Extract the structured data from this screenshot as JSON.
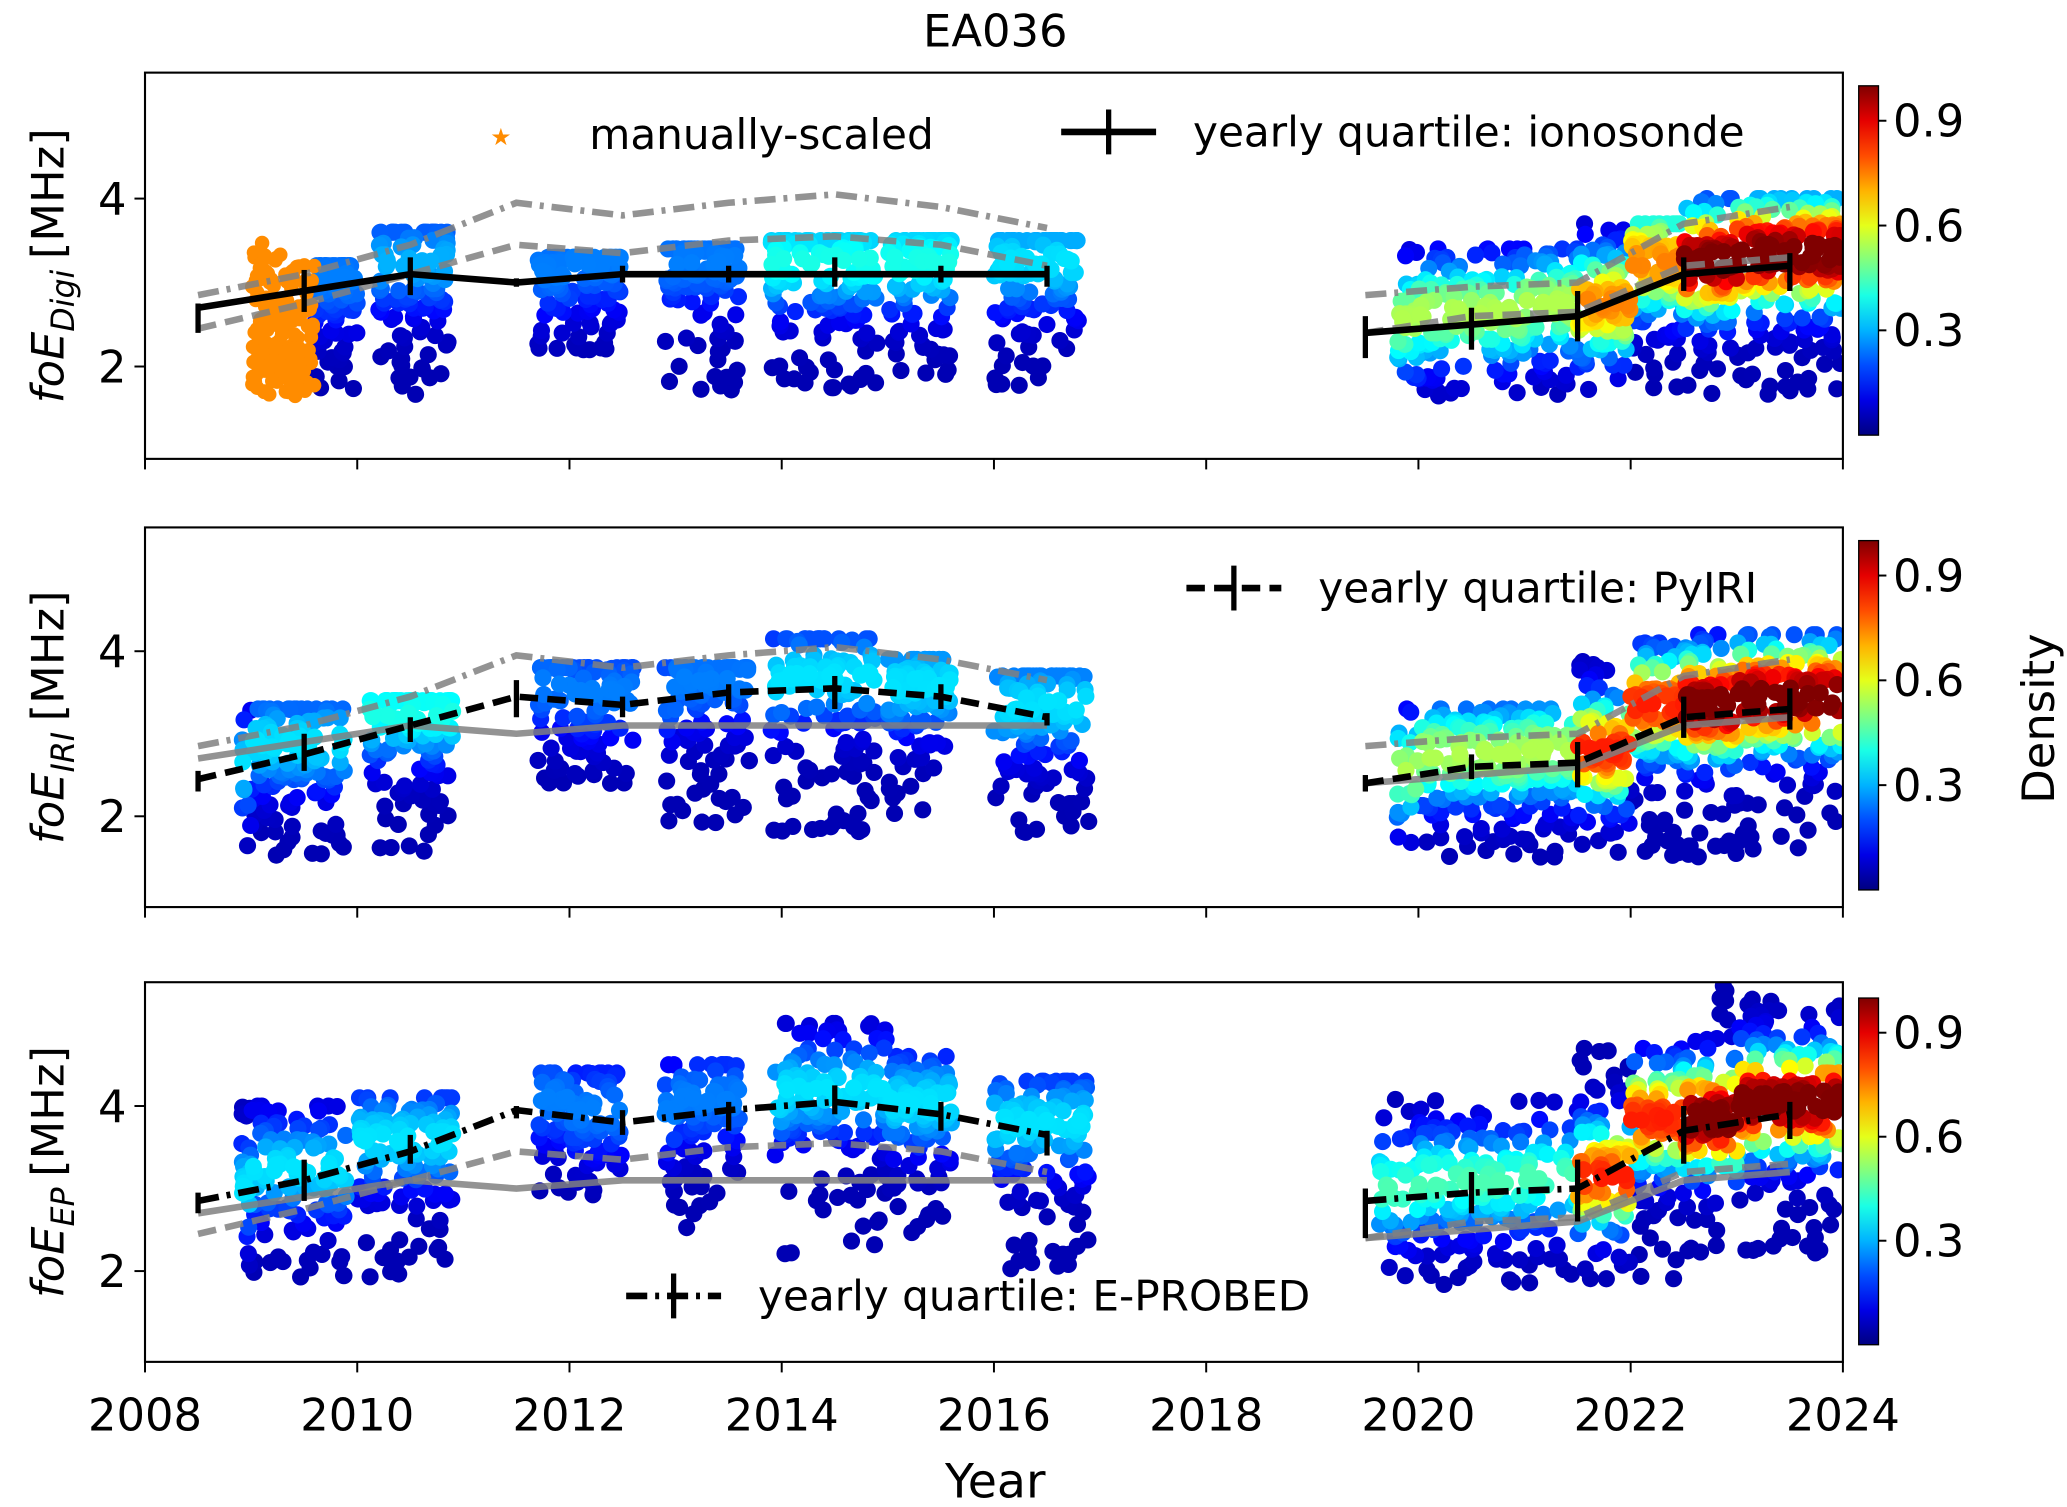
{
  "chart_data": {
    "type": "scatter",
    "title": "EA036",
    "xlabel": "Year",
    "xlim": [
      2008,
      2024
    ],
    "x_ticks": [
      "2008",
      "2010",
      "2012",
      "2014",
      "2016",
      "2018",
      "2020",
      "2022",
      "2024"
    ],
    "colorbar": {
      "label": "Density",
      "range": [
        0,
        1
      ],
      "ticks": [
        "0.3",
        "0.6",
        "0.9"
      ],
      "colormap": "jet"
    },
    "years": [
      2008.5,
      2009.5,
      2010.5,
      2011.5,
      2012.5,
      2013.5,
      2014.5,
      2015.5,
      2016.5,
      2019.5,
      2020.5,
      2021.5,
      2022.5,
      2023.5
    ],
    "quartiles": {
      "ionosonde": {
        "median": [
          2.7,
          2.9,
          3.1,
          3.0,
          3.1,
          3.1,
          3.1,
          3.1,
          3.1,
          2.4,
          2.5,
          2.6,
          3.1,
          3.2
        ],
        "lower": [
          2.4,
          2.65,
          2.85,
          2.95,
          3.0,
          3.0,
          2.95,
          3.0,
          2.95,
          2.1,
          2.2,
          2.3,
          2.9,
          2.9
        ],
        "upper": [
          2.75,
          3.15,
          3.3,
          3.05,
          3.2,
          3.2,
          3.3,
          3.2,
          3.2,
          2.6,
          2.7,
          2.9,
          3.3,
          3.35
        ]
      },
      "PyIRI": {
        "median": [
          2.45,
          2.75,
          3.1,
          3.45,
          3.35,
          3.5,
          3.55,
          3.45,
          3.2,
          2.4,
          2.6,
          2.65,
          3.2,
          3.3
        ],
        "lower": [
          2.3,
          2.55,
          2.9,
          3.2,
          3.2,
          3.3,
          3.3,
          3.3,
          3.1,
          2.3,
          2.45,
          2.35,
          2.95,
          3.05
        ],
        "upper": [
          2.55,
          3.0,
          3.2,
          3.65,
          3.45,
          3.6,
          3.7,
          3.6,
          3.25,
          2.5,
          2.75,
          2.9,
          3.45,
          3.55
        ]
      },
      "E-PROBED": {
        "median": [
          2.85,
          3.1,
          3.45,
          3.95,
          3.8,
          3.95,
          4.05,
          3.9,
          3.65,
          2.85,
          2.95,
          3.0,
          3.7,
          3.9
        ],
        "lower": [
          2.7,
          2.85,
          3.3,
          3.85,
          3.65,
          3.7,
          3.9,
          3.7,
          3.4,
          2.4,
          2.7,
          2.6,
          3.3,
          3.6
        ],
        "upper": [
          2.95,
          3.35,
          3.65,
          4.0,
          3.95,
          4.05,
          4.25,
          4.05,
          3.7,
          3.0,
          3.2,
          3.35,
          4.0,
          4.05
        ]
      }
    },
    "panels": [
      {
        "ylabel": "foE",
        "ylabel_sub": "Digi",
        "ylabel_unit": "[MHz]",
        "ylim": [
          0.9,
          5.5
        ],
        "y_ticks": [
          "2",
          "4"
        ],
        "series": "ionosonde",
        "reference": [
          "PyIRI",
          "E-PROBED"
        ],
        "legend": [
          {
            "label": "manually-scaled",
            "marker": "star",
            "color": "#ff8c00"
          },
          {
            "label": "yearly quartile: ionosonde",
            "style": "solid"
          }
        ],
        "manually_scaled": {
          "x": [
            2009.0,
            2009.6
          ],
          "y": [
            1.65,
            3.5
          ]
        },
        "clusters": [
          {
            "x": [
              2009.6,
              2010.0
            ],
            "y": [
              1.7,
              3.2
            ],
            "peak": 0.2
          },
          {
            "x": [
              2010.2,
              2010.9
            ],
            "y": [
              1.65,
              3.6
            ],
            "peak": 0.25
          },
          {
            "x": [
              2011.7,
              2012.5
            ],
            "y": [
              2.2,
              3.3
            ],
            "peak": 0.2
          },
          {
            "x": [
              2012.9,
              2013.6
            ],
            "y": [
              1.7,
              3.4
            ],
            "peak": 0.2
          },
          {
            "x": [
              2013.9,
              2014.9
            ],
            "y": [
              1.7,
              3.5
            ],
            "peak": 0.35
          },
          {
            "x": [
              2015.0,
              2015.6
            ],
            "y": [
              1.9,
              3.5
            ],
            "peak": 0.35
          },
          {
            "x": [
              2016.0,
              2016.8
            ],
            "y": [
              1.7,
              3.5
            ],
            "peak": 0.3
          },
          {
            "x": [
              2019.8,
              2021.5
            ],
            "y": [
              1.65,
              3.4
            ],
            "peak": 0.5
          },
          {
            "x": [
              2021.5,
              2022.5
            ],
            "y": [
              1.65,
              3.7
            ],
            "peak": 0.7
          },
          {
            "x": [
              2022.5,
              2024.0
            ],
            "y": [
              1.65,
              4.0
            ],
            "peak": 1.0
          }
        ]
      },
      {
        "ylabel": "foE",
        "ylabel_sub": "IRI",
        "ylabel_unit": "[MHz]",
        "ylim": [
          0.9,
          5.5
        ],
        "y_ticks": [
          "2",
          "4"
        ],
        "series": "PyIRI",
        "reference": [
          "ionosonde",
          "E-PROBED"
        ],
        "legend": [
          {
            "label": "yearly quartile: PyIRI",
            "style": "dashed"
          }
        ],
        "clusters": [
          {
            "x": [
              2008.9,
              2009.9
            ],
            "y": [
              1.5,
              3.3
            ],
            "peak": 0.3
          },
          {
            "x": [
              2010.1,
              2010.9
            ],
            "y": [
              1.5,
              3.4
            ],
            "peak": 0.35
          },
          {
            "x": [
              2011.7,
              2012.6
            ],
            "y": [
              2.4,
              3.8
            ],
            "peak": 0.2
          },
          {
            "x": [
              2012.9,
              2013.7
            ],
            "y": [
              1.9,
              3.8
            ],
            "peak": 0.2
          },
          {
            "x": [
              2013.9,
              2014.9
            ],
            "y": [
              1.8,
              4.15
            ],
            "peak": 0.3
          },
          {
            "x": [
              2015.0,
              2015.6
            ],
            "y": [
              2.0,
              3.9
            ],
            "peak": 0.3
          },
          {
            "x": [
              2016.0,
              2016.9
            ],
            "y": [
              1.8,
              3.7
            ],
            "peak": 0.3
          },
          {
            "x": [
              2019.8,
              2021.5
            ],
            "y": [
              1.5,
              3.3
            ],
            "peak": 0.5
          },
          {
            "x": [
              2021.5,
              2022.5
            ],
            "y": [
              1.5,
              4.1
            ],
            "peak": 0.8
          },
          {
            "x": [
              2022.5,
              2024.0
            ],
            "y": [
              1.5,
              4.2
            ],
            "peak": 1.0
          }
        ]
      },
      {
        "ylabel": "foE",
        "ylabel_sub": "EP",
        "ylabel_unit": "[MHz]",
        "ylim": [
          0.9,
          5.5
        ],
        "y_ticks": [
          "2",
          "4"
        ],
        "series": "E-PROBED",
        "reference": [
          "ionosonde",
          "PyIRI"
        ],
        "legend": [
          {
            "label": "yearly quartile: E-PROBED",
            "style": "dashdot"
          }
        ],
        "clusters": [
          {
            "x": [
              2008.9,
              2009.9
            ],
            "y": [
              1.9,
              4.0
            ],
            "peak": 0.3
          },
          {
            "x": [
              2010.0,
              2010.9
            ],
            "y": [
              1.9,
              4.1
            ],
            "peak": 0.3
          },
          {
            "x": [
              2011.7,
              2012.5
            ],
            "y": [
              2.9,
              4.4
            ],
            "peak": 0.2
          },
          {
            "x": [
              2012.9,
              2013.6
            ],
            "y": [
              2.5,
              4.5
            ],
            "peak": 0.2
          },
          {
            "x": [
              2013.9,
              2015.0
            ],
            "y": [
              2.2,
              5.0
            ],
            "peak": 0.3
          },
          {
            "x": [
              2015.0,
              2015.6
            ],
            "y": [
              2.4,
              4.6
            ],
            "peak": 0.3
          },
          {
            "x": [
              2016.0,
              2016.9
            ],
            "y": [
              2.0,
              4.3
            ],
            "peak": 0.3
          },
          {
            "x": [
              2019.6,
              2021.5
            ],
            "y": [
              1.8,
              4.1
            ],
            "peak": 0.4
          },
          {
            "x": [
              2021.5,
              2022.5
            ],
            "y": [
              1.9,
              4.7
            ],
            "peak": 0.8
          },
          {
            "x": [
              2022.5,
              2024.0
            ],
            "y": [
              2.2,
              5.5
            ],
            "peak": 1.0
          }
        ]
      }
    ],
    "colors": {
      "reference_line": "#808080",
      "series_line": "#000000",
      "manually_scaled": "#ff8c00"
    }
  }
}
